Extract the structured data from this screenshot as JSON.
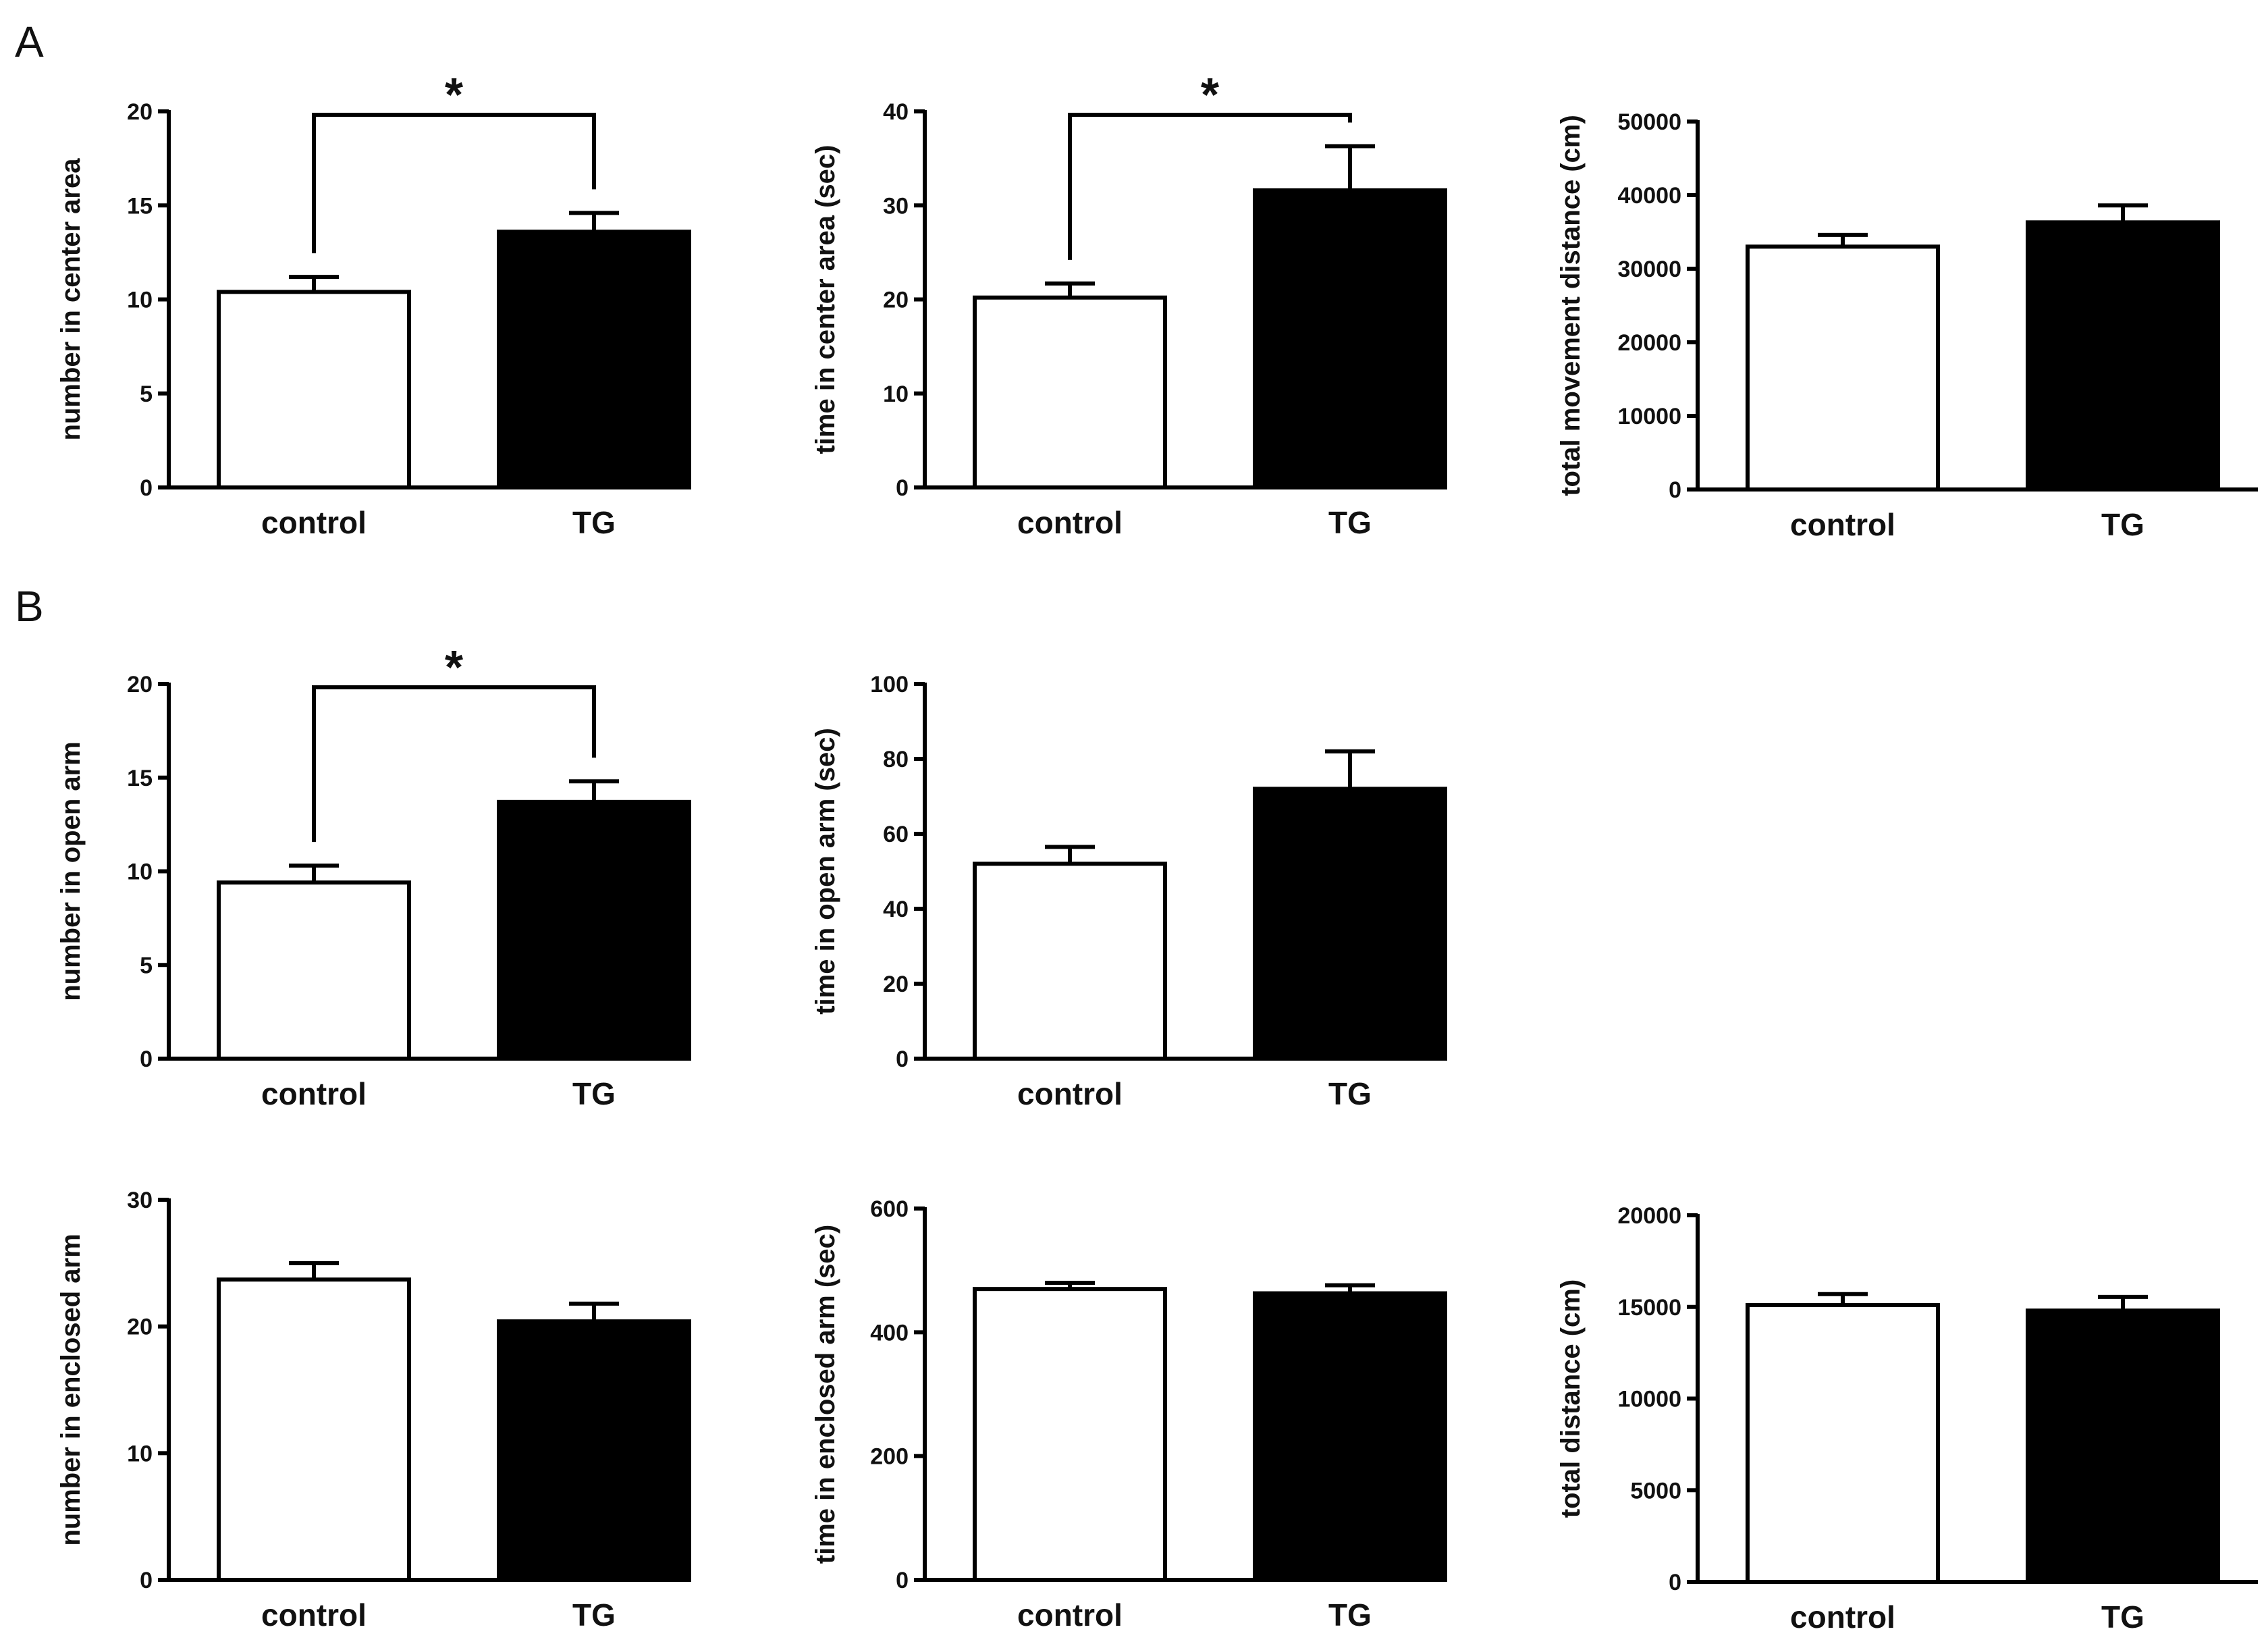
{
  "panel_labels": [
    "A",
    "B"
  ],
  "colors": {
    "control": "#ffffff",
    "TG": "#000000",
    "stroke": "#000000"
  },
  "chart_data": [
    {
      "type": "bar",
      "panel": "A",
      "title": "",
      "xlabel": "",
      "ylabel": "number in center area",
      "categories": [
        "control",
        "TG"
      ],
      "values": [
        10.4,
        13.6
      ],
      "errors": [
        0.8,
        1.0
      ],
      "ylim": [
        0,
        20
      ],
      "yticks": [
        0,
        5,
        10,
        15,
        20
      ],
      "significance": "*"
    },
    {
      "type": "bar",
      "panel": "A",
      "title": "",
      "xlabel": "",
      "ylabel": "time in center area (sec)",
      "categories": [
        "control",
        "TG"
      ],
      "values": [
        20.2,
        31.6
      ],
      "errors": [
        1.5,
        4.7
      ],
      "ylim": [
        0,
        40
      ],
      "yticks": [
        0,
        10,
        20,
        30,
        40
      ],
      "significance": "*"
    },
    {
      "type": "bar",
      "panel": "A",
      "title": "",
      "xlabel": "",
      "ylabel": "total movement distance (cm)",
      "categories": [
        "control",
        "TG"
      ],
      "values": [
        33000,
        36300
      ],
      "errors": [
        1600,
        2300
      ],
      "ylim": [
        0,
        50000
      ],
      "yticks": [
        0,
        10000,
        20000,
        30000,
        40000,
        50000
      ],
      "significance": ""
    },
    {
      "type": "bar",
      "panel": "B",
      "title": "",
      "xlabel": "",
      "ylabel": "number in open arm",
      "categories": [
        "control",
        "TG"
      ],
      "values": [
        9.4,
        13.7
      ],
      "errors": [
        0.9,
        1.1
      ],
      "ylim": [
        0,
        20
      ],
      "yticks": [
        0,
        5,
        10,
        15,
        20
      ],
      "significance": "*"
    },
    {
      "type": "bar",
      "panel": "B",
      "title": "",
      "xlabel": "",
      "ylabel": "time in open arm (sec)",
      "categories": [
        "control",
        "TG"
      ],
      "values": [
        52,
        72
      ],
      "errors": [
        4.5,
        10
      ],
      "ylim": [
        0,
        100
      ],
      "yticks": [
        0,
        20,
        40,
        60,
        80,
        100
      ],
      "significance": ""
    },
    {
      "type": "bar",
      "panel": "B",
      "title": "",
      "xlabel": "",
      "ylabel": "number in enclosed arm",
      "categories": [
        "control",
        "TG"
      ],
      "values": [
        23.7,
        20.4
      ],
      "errors": [
        1.3,
        1.4
      ],
      "ylim": [
        0,
        30
      ],
      "yticks": [
        0,
        10,
        20,
        30
      ],
      "significance": ""
    },
    {
      "type": "bar",
      "panel": "B",
      "title": "",
      "xlabel": "",
      "ylabel": "time in enclosed arm (sec)",
      "categories": [
        "control",
        "TG"
      ],
      "values": [
        470,
        463
      ],
      "errors": [
        10,
        13
      ],
      "ylim": [
        0,
        600
      ],
      "yticks": [
        0,
        200,
        400,
        600
      ],
      "significance": ""
    },
    {
      "type": "bar",
      "panel": "B",
      "title": "",
      "xlabel": "",
      "ylabel": "total distance (cm)",
      "categories": [
        "control",
        "TG"
      ],
      "values": [
        15100,
        14800
      ],
      "errors": [
        600,
        750
      ],
      "ylim": [
        0,
        20000
      ],
      "yticks": [
        0,
        5000,
        10000,
        15000,
        20000
      ],
      "significance": ""
    }
  ]
}
